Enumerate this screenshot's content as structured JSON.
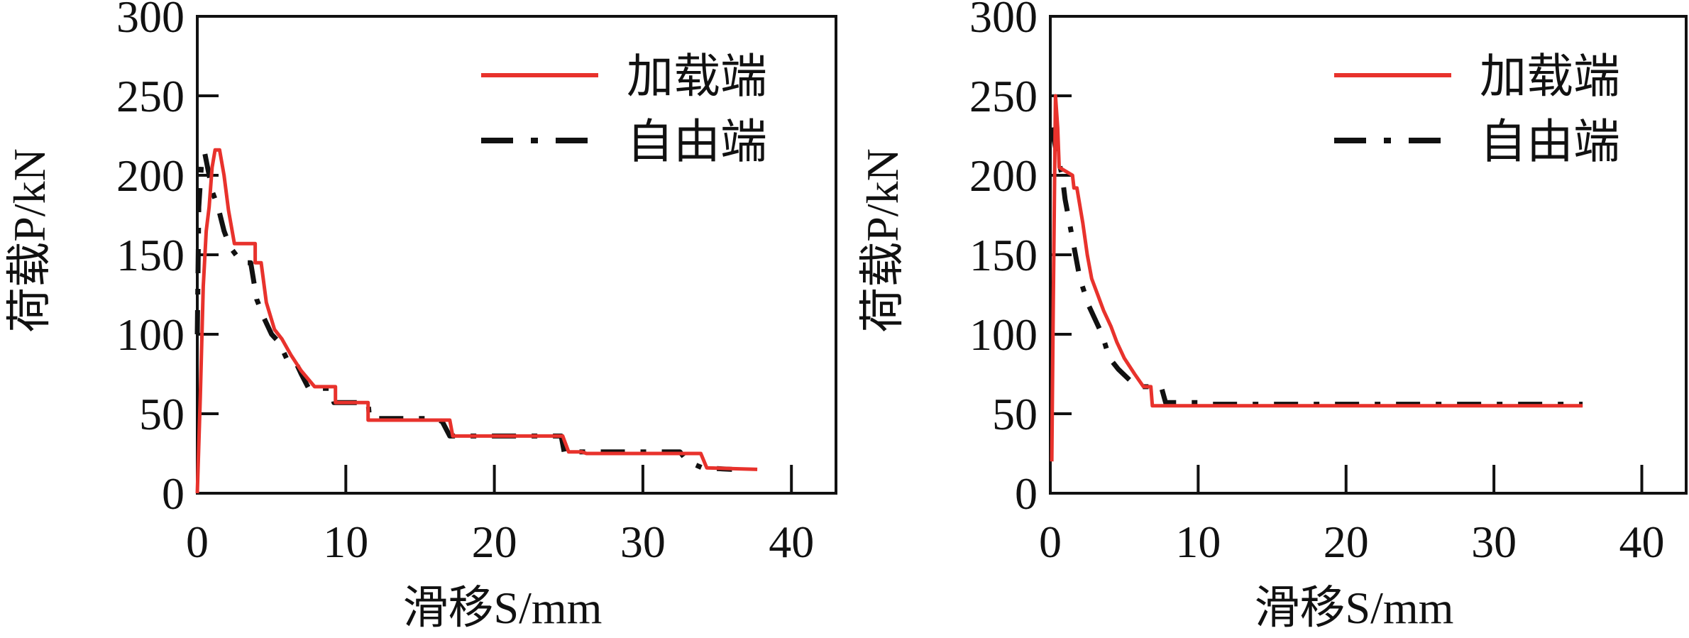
{
  "chart_data": [
    {
      "type": "line",
      "panel": "left",
      "xlabel": "滑移S/mm",
      "xlabel_parts": {
        "prefix": "滑移",
        "var": "S",
        "unit": "/mm"
      },
      "ylabel": "荷载P/kN",
      "ylabel_parts": {
        "prefix": "荷载",
        "var": "P",
        "unit": "/kN"
      },
      "xlim": [
        0,
        43
      ],
      "ylim": [
        0,
        300
      ],
      "xticks": [
        0,
        10,
        20,
        30,
        40
      ],
      "yticks": [
        0,
        50,
        100,
        150,
        200,
        250,
        300
      ],
      "grid": false,
      "legend": "top-right",
      "series": [
        {
          "name": "加载端",
          "color": "#e8322c",
          "style": "solid",
          "points": [
            [
              0,
              0
            ],
            [
              0.2,
              60
            ],
            [
              0.4,
              130
            ],
            [
              0.6,
              165
            ],
            [
              0.8,
              180
            ],
            [
              1.0,
              205
            ],
            [
              1.2,
              216
            ],
            [
              1.5,
              216
            ],
            [
              1.8,
              200
            ],
            [
              2.1,
              178
            ],
            [
              2.5,
              157
            ],
            [
              3.9,
              157
            ],
            [
              3.9,
              145
            ],
            [
              4.3,
              145
            ],
            [
              4.65,
              120
            ],
            [
              5.2,
              103
            ],
            [
              5.7,
              97
            ],
            [
              6.3,
              87
            ],
            [
              7.0,
              77
            ],
            [
              7.9,
              67
            ],
            [
              9.3,
              67
            ],
            [
              9.3,
              57
            ],
            [
              11.5,
              57
            ],
            [
              11.5,
              46
            ],
            [
              17.0,
              46
            ],
            [
              17.2,
              36
            ],
            [
              24.6,
              36
            ],
            [
              25.0,
              26
            ],
            [
              25.9,
              26
            ],
            [
              26.2,
              25
            ],
            [
              33.9,
              25
            ],
            [
              34.3,
              16
            ],
            [
              37.7,
              15
            ]
          ]
        },
        {
          "name": "自由端",
          "color": "#111111",
          "style": "dashed",
          "points": [
            [
              0,
              100
            ],
            [
              0.1,
              180
            ],
            [
              0.3,
              210
            ],
            [
              0.5,
              214
            ],
            [
              0.8,
              200
            ],
            [
              1.0,
              190
            ],
            [
              1.4,
              180
            ],
            [
              1.8,
              165
            ],
            [
              2.2,
              155
            ],
            [
              2.6,
              150
            ],
            [
              3.0,
              145
            ],
            [
              3.6,
              145
            ],
            [
              4.0,
              122
            ],
            [
              4.5,
              110
            ],
            [
              5.0,
              100
            ],
            [
              5.5,
              95
            ],
            [
              6.0,
              85
            ],
            [
              6.5,
              85
            ],
            [
              7.0,
              75
            ],
            [
              7.5,
              66
            ],
            [
              9.0,
              66
            ],
            [
              9.2,
              57
            ],
            [
              11.5,
              57
            ],
            [
              11.6,
              47
            ],
            [
              16.0,
              47
            ],
            [
              16.5,
              45
            ],
            [
              17.0,
              36
            ],
            [
              24.5,
              36
            ],
            [
              24.7,
              26
            ],
            [
              32.5,
              26
            ],
            [
              33.0,
              20
            ],
            [
              34.0,
              16
            ],
            [
              36.0,
              15
            ]
          ]
        }
      ]
    },
    {
      "type": "line",
      "panel": "right",
      "xlabel": "滑移S/mm",
      "xlabel_parts": {
        "prefix": "滑移",
        "var": "S",
        "unit": "/mm"
      },
      "ylabel": "荷载P/kN",
      "ylabel_parts": {
        "prefix": "荷载",
        "var": "P",
        "unit": "/kN"
      },
      "xlim": [
        0,
        43
      ],
      "ylim": [
        0,
        300
      ],
      "xticks": [
        0,
        10,
        20,
        30,
        40
      ],
      "yticks": [
        0,
        50,
        100,
        150,
        200,
        250,
        300
      ],
      "grid": false,
      "legend": "top-right",
      "series": [
        {
          "name": "加载端",
          "color": "#e8322c",
          "style": "solid",
          "points": [
            [
              0.1,
              20
            ],
            [
              0.2,
              120
            ],
            [
              0.35,
              250
            ],
            [
              0.5,
              230
            ],
            [
              0.6,
              205
            ],
            [
              1.5,
              200
            ],
            [
              1.6,
              192
            ],
            [
              1.8,
              192
            ],
            [
              2.2,
              170
            ],
            [
              2.5,
              150
            ],
            [
              2.8,
              135
            ],
            [
              3.2,
              125
            ],
            [
              3.6,
              115
            ],
            [
              4.1,
              105
            ],
            [
              4.5,
              95
            ],
            [
              5.0,
              85
            ],
            [
              5.7,
              75
            ],
            [
              6.3,
              67
            ],
            [
              6.8,
              67
            ],
            [
              6.9,
              55
            ],
            [
              36,
              55
            ]
          ]
        },
        {
          "name": "自由端",
          "color": "#111111",
          "style": "dashed",
          "points": [
            [
              0.1,
              230
            ],
            [
              0.4,
              215
            ],
            [
              0.8,
              200
            ],
            [
              1.0,
              185
            ],
            [
              1.5,
              160
            ],
            [
              2.0,
              135
            ],
            [
              2.6,
              118
            ],
            [
              3.0,
              110
            ],
            [
              3.5,
              100
            ],
            [
              4.0,
              85
            ],
            [
              4.6,
              78
            ],
            [
              5.5,
              70
            ],
            [
              6.0,
              67
            ],
            [
              7.5,
              67
            ],
            [
              7.8,
              57
            ],
            [
              10,
              57
            ],
            [
              11,
              56
            ],
            [
              36,
              56
            ]
          ]
        }
      ]
    }
  ]
}
